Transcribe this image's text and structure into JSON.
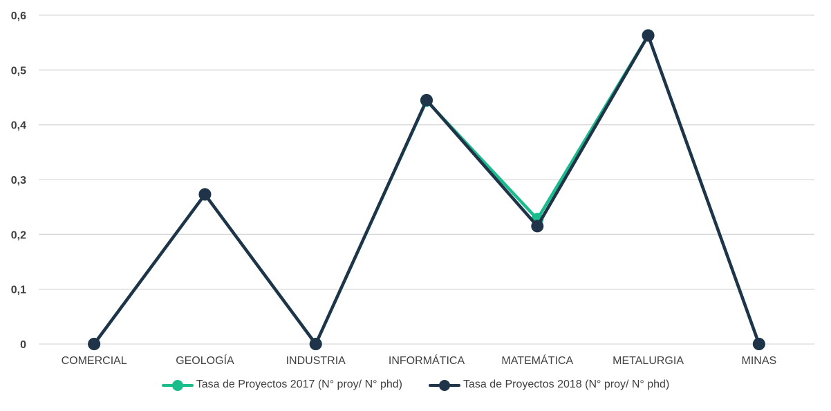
{
  "chart_data": {
    "type": "line",
    "categories": [
      "COMERCIAL",
      "GEOLOGÍA",
      "INDUSTRIA",
      "INFORMÁTICA",
      "MATEMÁTICA",
      "METALURGIA",
      "MINAS"
    ],
    "series": [
      {
        "name": "Tasa de Proyectos 2017 (N° proy/ N° phd)",
        "values": [
          0,
          0.273,
          0,
          0.444,
          0.228,
          0.563,
          0
        ],
        "color": "#1ABC8C"
      },
      {
        "name": "Tasa de Proyectos 2018 (N° proy/ N° phd)",
        "values": [
          0,
          0.273,
          0,
          0.445,
          0.215,
          0.563,
          0
        ],
        "color": "#1F3349"
      }
    ],
    "yticks": [
      "0",
      "0,1",
      "0,2",
      "0,3",
      "0,4",
      "0,5",
      "0,6"
    ],
    "ylim": [
      0,
      0.6
    ],
    "grid": true,
    "legend_position": "bottom"
  }
}
